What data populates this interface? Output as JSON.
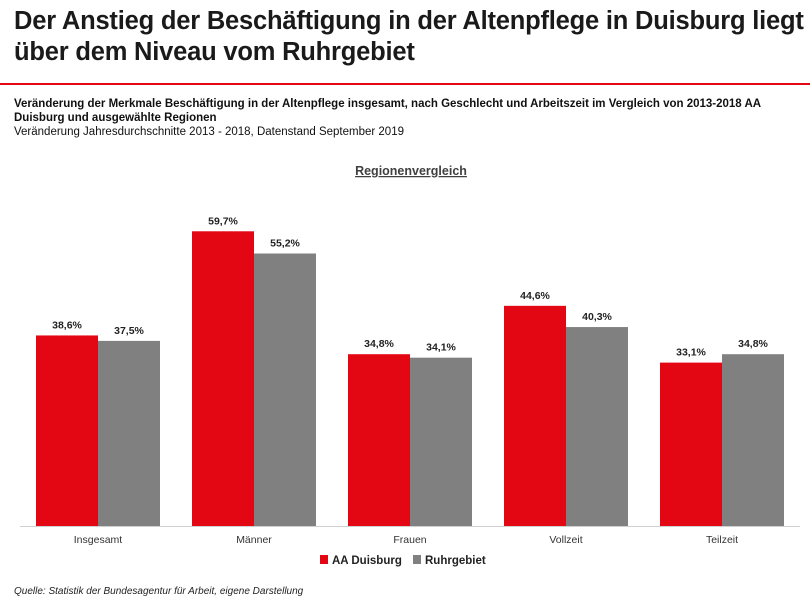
{
  "header": {
    "title": "Der Anstieg der Beschäftigung in der Altenpflege in Duisburg liegt über dem Niveau vom Ruhrgebiet",
    "subtitle_bold": "Veränderung der Merkmale Beschäftigung in der Altenpflege insgesamt, nach Geschlecht und Arbeitszeit im Vergleich von 2013-2018 AA Duisburg und ausgewählte Regionen",
    "subtitle": "Veränderung Jahresdurchschnitte 2013 - 2018, Datenstand September 2019"
  },
  "chart_data": {
    "type": "bar",
    "title": "Regionenvergleich",
    "categories": [
      "Insgesamt",
      "Männer",
      "Frauen",
      "Vollzeit",
      "Teilzeit"
    ],
    "series": [
      {
        "name": "AA Duisburg",
        "values": [
          38.6,
          59.7,
          34.8,
          44.6,
          33.1
        ],
        "labels": [
          "38,6%",
          "59,7%",
          "34,8%",
          "44,6%",
          "33,1%"
        ],
        "color": "#e30613"
      },
      {
        "name": "Ruhrgebiet",
        "values": [
          37.5,
          55.2,
          34.1,
          40.3,
          34.8
        ],
        "labels": [
          "37,5%",
          "55,2%",
          "34,1%",
          "40,3%",
          "34,8%"
        ],
        "color": "#808080"
      }
    ],
    "ylim": [
      0,
      63
    ],
    "grid": false,
    "legend": "bottom"
  },
  "footer": {
    "source": "Quelle: Statistik der Bundesagentur für Arbeit, eigene Darstellung"
  }
}
